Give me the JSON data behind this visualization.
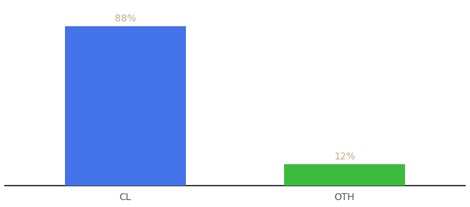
{
  "categories": [
    "CL",
    "OTH"
  ],
  "values": [
    88,
    12
  ],
  "bar_colors": [
    "#4472e8",
    "#3dbb3d"
  ],
  "bar_labels": [
    "88%",
    "12%"
  ],
  "background_color": "#ffffff",
  "label_color": "#c8a882",
  "tick_color": "#555555",
  "ylim": [
    0,
    100
  ],
  "bar_width": 0.55,
  "label_fontsize": 10,
  "tick_fontsize": 10
}
